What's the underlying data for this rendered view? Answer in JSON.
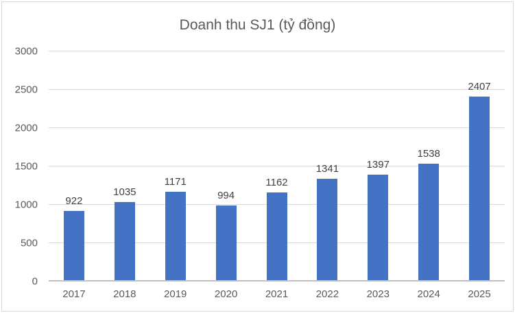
{
  "chart_data": {
    "type": "bar",
    "title": "Doanh thu SJ1 (tỷ đồng)",
    "categories": [
      "2017",
      "2018",
      "2019",
      "2020",
      "2021",
      "2022",
      "2023",
      "2024",
      "2025"
    ],
    "values": [
      922,
      1035,
      1171,
      994,
      1162,
      1341,
      1397,
      1538,
      2407
    ],
    "xlabel": "",
    "ylabel": "",
    "ylim": [
      0,
      3000
    ],
    "yticks": [
      0,
      500,
      1000,
      1500,
      2000,
      2500,
      3000
    ],
    "grid": true,
    "legend": "none",
    "data_labels": true,
    "colors": {
      "bar": "#4472c4",
      "title_text": "#595959",
      "axis_text": "#595959",
      "data_label_text": "#404040",
      "gridline": "#d9d9d9",
      "axis_line": "#bfbfbf",
      "frame_border": "#d9d9d9",
      "background": "#ffffff"
    }
  }
}
